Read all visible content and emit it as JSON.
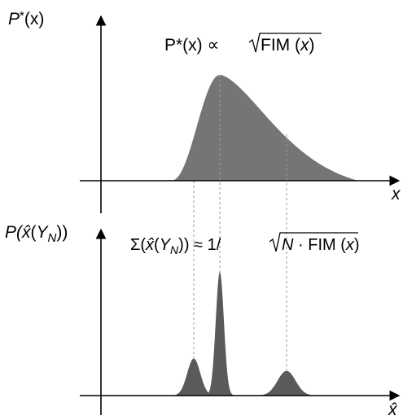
{
  "top_plot": {
    "y_label": {
      "main": "P",
      "star": "*",
      "arg": "(x)"
    },
    "x_label": "x",
    "formula": {
      "lhs": "P*(x) ∝ ",
      "radical": "FIM (",
      "x": "x",
      "close": ")"
    }
  },
  "bottom_plot": {
    "y_label": {
      "p": "P(",
      "xhat": "x̂",
      "paren": "(",
      "Y": "Y",
      "N": "N",
      "close": "))"
    },
    "x_label": "x̂",
    "formula": {
      "sigma": "Σ(",
      "xhat": "x̂",
      "paren": "(",
      "Y": "Y",
      "N": "N",
      "rhs": ")) ≈ 1/ ",
      "radical_N": "N",
      "radical_rest": " · FIM (",
      "x": "x",
      "close": ")"
    },
    "peaks": [
      {
        "name": "peak-left",
        "relative_height": 0.3
      },
      {
        "name": "peak-center",
        "relative_height": 1.0
      },
      {
        "name": "peak-right",
        "relative_height": 0.2
      }
    ]
  },
  "colors": {
    "top_fill": "#757575",
    "peak_fill": "#5a5a5a",
    "axis": "#000000",
    "guide": "#9a9a9a"
  }
}
